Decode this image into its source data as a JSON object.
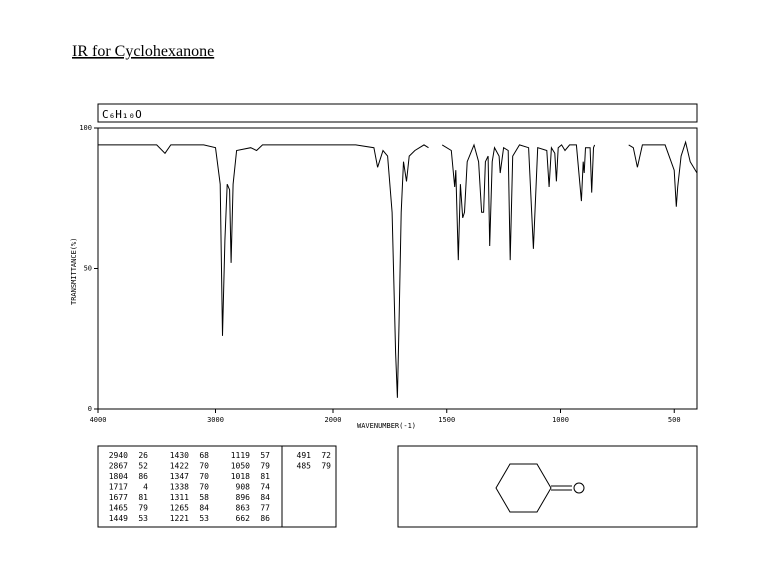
{
  "title": "IR for Cyclohexanone",
  "chart_data": {
    "type": "line",
    "formula": "C₆H₁₀O",
    "x_label": "WAVENUMBER(-1)",
    "y_label": "TRANSMITTANCE(%)",
    "xlim": [
      4000,
      400
    ],
    "x_scale_break": 2000,
    "xticks": [
      4000,
      3000,
      2000,
      1500,
      1000,
      500
    ],
    "ylim": [
      0,
      100
    ],
    "yticks": [
      0,
      50,
      100
    ],
    "series": [
      {
        "color": "#000000",
        "x": [
          4000,
          3500,
          3430,
          3380,
          3100,
          3000,
          2960,
          2940,
          2920,
          2900,
          2880,
          2867,
          2850,
          2820,
          2700,
          2650,
          2600,
          2200,
          2000,
          1900,
          1820,
          1804,
          1780,
          1760,
          1740,
          1725,
          1717,
          1710,
          1700,
          1690,
          1677,
          1665,
          1640,
          1600,
          1580,
          null,
          1520,
          1480,
          1465,
          1460,
          1449,
          1440,
          1430,
          1422,
          1410,
          1380,
          1360,
          1347,
          1338,
          1330,
          1318,
          1311,
          1300,
          1290,
          1270,
          1265,
          1250,
          1230,
          1221,
          1210,
          1180,
          1140,
          1119,
          1100,
          1060,
          1050,
          1040,
          1025,
          1018,
          1010,
          995,
          980,
          960,
          930,
          908,
          900,
          896,
          890,
          870,
          863,
          855,
          850,
          null,
          700,
          680,
          662,
          640,
          540,
          500,
          491,
          485,
          470,
          450,
          430,
          400
        ],
        "values": [
          94,
          94,
          91,
          94,
          94,
          93,
          80,
          26,
          60,
          80,
          78,
          52,
          80,
          92,
          93,
          92,
          94,
          94,
          94,
          94,
          93,
          86,
          92,
          90,
          70,
          20,
          4,
          30,
          70,
          88,
          81,
          90,
          92,
          94,
          93,
          null,
          94,
          92,
          79,
          85,
          53,
          80,
          68,
          70,
          88,
          94,
          88,
          70,
          70,
          88,
          90,
          58,
          88,
          93,
          90,
          84,
          93,
          92,
          53,
          90,
          94,
          93,
          57,
          93,
          92,
          79,
          93,
          91,
          81,
          93,
          94,
          92,
          94,
          94,
          74,
          88,
          84,
          93,
          93,
          77,
          93,
          94,
          null,
          94,
          93,
          86,
          94,
          94,
          85,
          72,
          79,
          90,
          95,
          88,
          84
        ]
      }
    ]
  },
  "peak_table": [
    [
      2940,
      26
    ],
    [
      2867,
      52
    ],
    [
      1804,
      86
    ],
    [
      1717,
      4
    ],
    [
      1677,
      81
    ],
    [
      1465,
      79
    ],
    [
      1449,
      53
    ],
    [
      1430,
      68
    ],
    [
      1422,
      70
    ],
    [
      1347,
      70
    ],
    [
      1338,
      70
    ],
    [
      1311,
      58
    ],
    [
      1265,
      84
    ],
    [
      1221,
      53
    ],
    [
      1119,
      57
    ],
    [
      1050,
      79
    ],
    [
      1018,
      81
    ],
    [
      908,
      74
    ],
    [
      896,
      84
    ],
    [
      863,
      77
    ],
    [
      662,
      86
    ],
    [
      491,
      72
    ],
    [
      485,
      79
    ]
  ]
}
